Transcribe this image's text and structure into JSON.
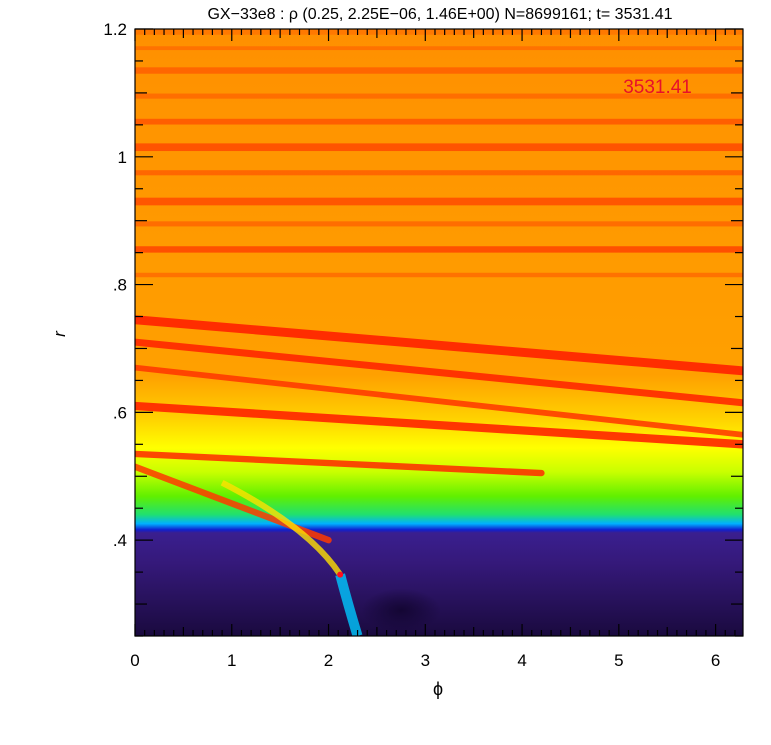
{
  "chart_data": {
    "type": "heatmap",
    "title": "GX−33e8 : ρ (0.25,  2.25E−06,  1.46E+00) N=8699161; t= 3531.41",
    "xlabel": "ϕ",
    "ylabel": "r",
    "xlim": [
      0,
      6.2832
    ],
    "ylim": [
      0.25,
      1.2
    ],
    "x_ticks": [
      0,
      1,
      2,
      3,
      4,
      5,
      6
    ],
    "x_tick_labels": [
      "0",
      "1",
      "2",
      "3",
      "4",
      "5",
      "6"
    ],
    "y_ticks": [
      0.4,
      0.6,
      0.8,
      1.0,
      1.2
    ],
    "y_tick_labels": [
      ".4",
      ".6",
      ".8",
      "1",
      "1.2"
    ],
    "annotation": "3531.41",
    "annotation_color": "#e8102a",
    "planet_marker": {
      "phi": 2.12,
      "r": 0.346,
      "color": "#ff1020"
    },
    "colormap": [
      "#2a0a55",
      "#3a1a8a",
      "#1020d0",
      "#00b0ff",
      "#20e060",
      "#a0ff00",
      "#ffff00",
      "#ffa000",
      "#ff6000",
      "#ff1a00"
    ],
    "grid": false
  }
}
